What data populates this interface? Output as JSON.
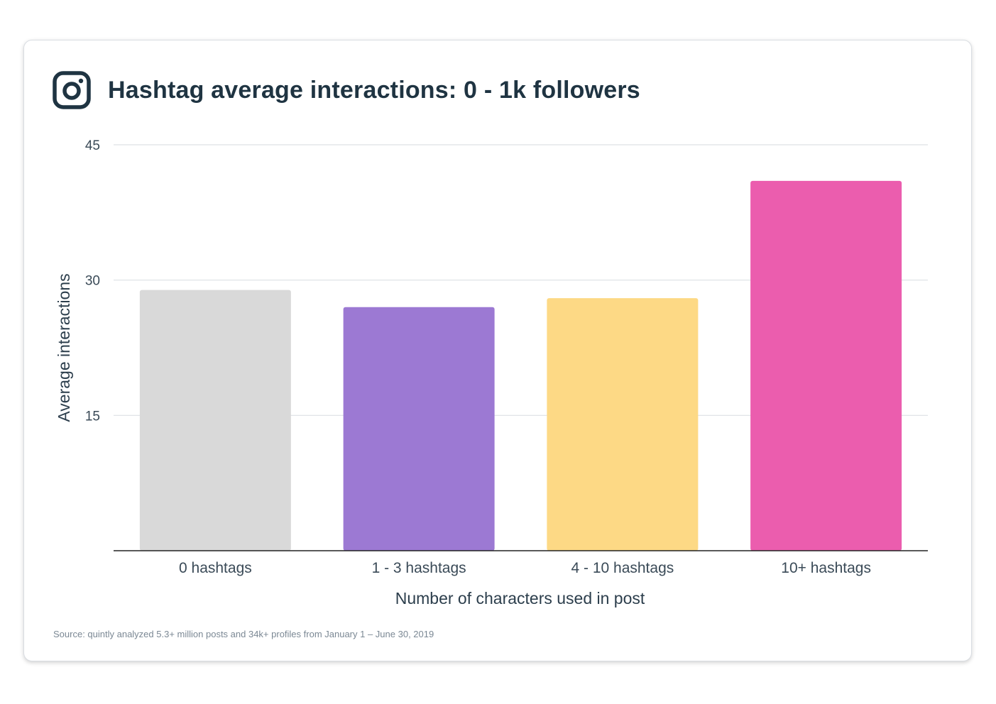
{
  "header": {
    "icon": "instagram-icon",
    "title": "Hashtag average interactions: 0 - 1k followers"
  },
  "chart_data": {
    "type": "bar",
    "title": "Hashtag average interactions: 0 - 1k followers",
    "categories": [
      "0 hashtags",
      "1 - 3 hashtags",
      "4 - 10 hashtags",
      "10+ hashtags"
    ],
    "values": [
      28.9,
      27,
      28,
      41
    ],
    "colors": [
      "#d9d9d9",
      "#9c79d3",
      "#fdd985",
      "#eb5dae"
    ],
    "xlabel": "Number of characters used in post",
    "ylabel": "Average interactions",
    "ylim": [
      0,
      45
    ],
    "yticks": [
      15,
      30,
      45
    ],
    "grid": true
  },
  "footer": {
    "source": "Source: quintly analyzed 5.3+ million posts and 34k+ profiles from January 1 – June 30, 2019"
  }
}
